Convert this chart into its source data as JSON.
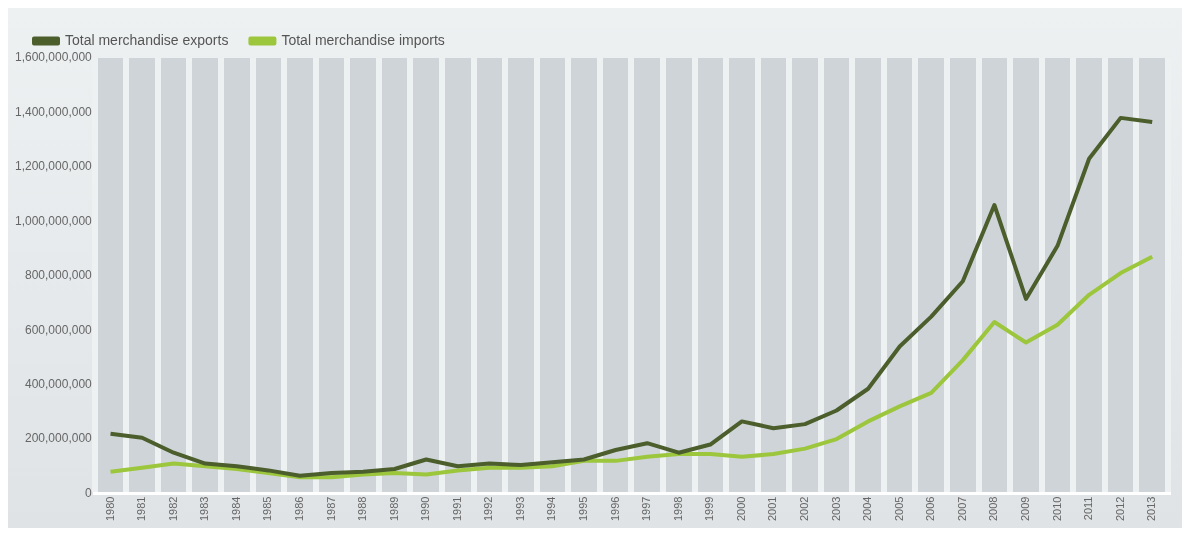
{
  "chart_data": {
    "type": "line",
    "categories": [
      "1980",
      "1981",
      "1982",
      "1983",
      "1984",
      "1985",
      "1986",
      "1987",
      "1988",
      "1989",
      "1990",
      "1991",
      "1992",
      "1993",
      "1994",
      "1995",
      "1996",
      "1997",
      "1998",
      "1999",
      "2000",
      "2001",
      "2002",
      "2003",
      "2004",
      "2005",
      "2006",
      "2007",
      "2008",
      "2009",
      "2010",
      "2011",
      "2012",
      "2013"
    ],
    "series": [
      {
        "name": "Total merchandise exports",
        "color": "#4b5e2c",
        "values": [
          220000000,
          205000000,
          150000000,
          110000000,
          100000000,
          85000000,
          65000000,
          75000000,
          80000000,
          90000000,
          125000000,
          100000000,
          110000000,
          105000000,
          115000000,
          125000000,
          160000000,
          185000000,
          150000000,
          180000000,
          265000000,
          240000000,
          255000000,
          305000000,
          385000000,
          540000000,
          650000000,
          780000000,
          1060000000,
          715000000,
          910000000,
          1230000000,
          1380000000,
          1365000000
        ]
      },
      {
        "name": "Total merchandise imports",
        "color": "#9cc63c",
        "values": [
          80000000,
          95000000,
          110000000,
          100000000,
          90000000,
          75000000,
          60000000,
          60000000,
          70000000,
          75000000,
          70000000,
          85000000,
          95000000,
          95000000,
          100000000,
          120000000,
          120000000,
          135000000,
          145000000,
          145000000,
          135000000,
          145000000,
          165000000,
          200000000,
          265000000,
          320000000,
          370000000,
          490000000,
          630000000,
          555000000,
          620000000,
          730000000,
          810000000,
          870000000
        ]
      }
    ],
    "ylim": [
      0,
      1600000000
    ],
    "yticks": [
      {
        "value": 0,
        "label": "0"
      },
      {
        "value": 200000000,
        "label": "200,000,000"
      },
      {
        "value": 400000000,
        "label": "400,000,000"
      },
      {
        "value": 600000000,
        "label": "600,000,000"
      },
      {
        "value": 800000000,
        "label": "800,000,000"
      },
      {
        "value": 1000000000,
        "label": "1,000,000,000"
      },
      {
        "value": 1200000000,
        "label": "1,200,000,000"
      },
      {
        "value": 1400000000,
        "label": "1,400,000,000"
      },
      {
        "value": 1600000000,
        "label": "1,600,000,000"
      }
    ],
    "grid": "x",
    "legend": "top left",
    "marker": "none",
    "line_style": "solid"
  }
}
